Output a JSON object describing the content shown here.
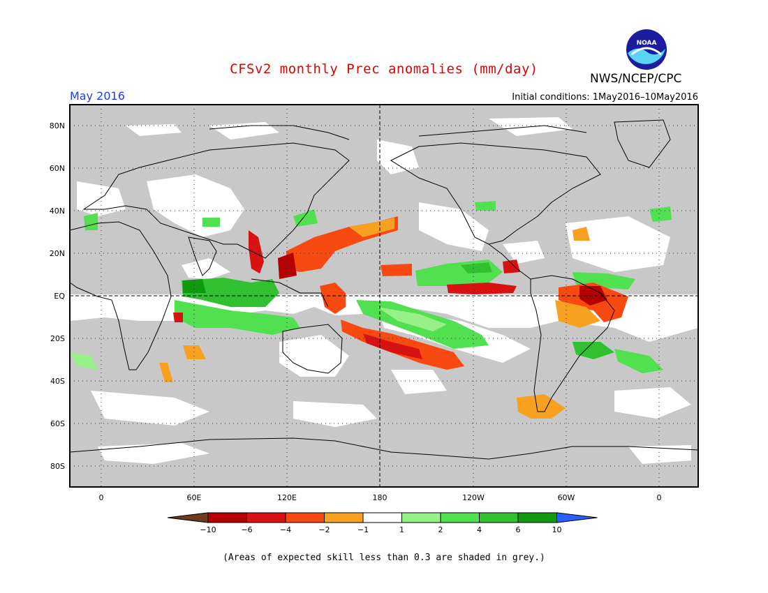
{
  "header": {
    "title": "CFSv2 monthly Prec anomalies (mm/day)",
    "month": "May 2016",
    "initial_conditions": "Initial conditions: 1May2016–10May2016",
    "agency": "NWS/NCEP/CPC",
    "logo_text": "NOAA",
    "logo_icon": "noaa-logo-icon"
  },
  "map": {
    "lat_labels": [
      "80N",
      "60N",
      "40N",
      "20N",
      "EQ",
      "20S",
      "40S",
      "60S",
      "80S"
    ],
    "lon_labels": [
      "0",
      "60E",
      "120E",
      "180",
      "120W",
      "60W",
      "0"
    ],
    "mask_color": "#c8c8c8",
    "neutral_color": "#ffffff"
  },
  "legend": {
    "ticks": [
      "−10",
      "−6",
      "−4",
      "−2",
      "−1",
      "1",
      "2",
      "4",
      "6",
      "10"
    ],
    "colors": [
      "#6e3b1c",
      "#b40000",
      "#d81212",
      "#f84a10",
      "#f8a020",
      "#ffffff",
      "#98f088",
      "#50e050",
      "#30c030",
      "#109a10",
      "#2860ff"
    ]
  },
  "footer": {
    "note": "(Areas of expected skill less than 0.3 are shaded in grey.)"
  }
}
